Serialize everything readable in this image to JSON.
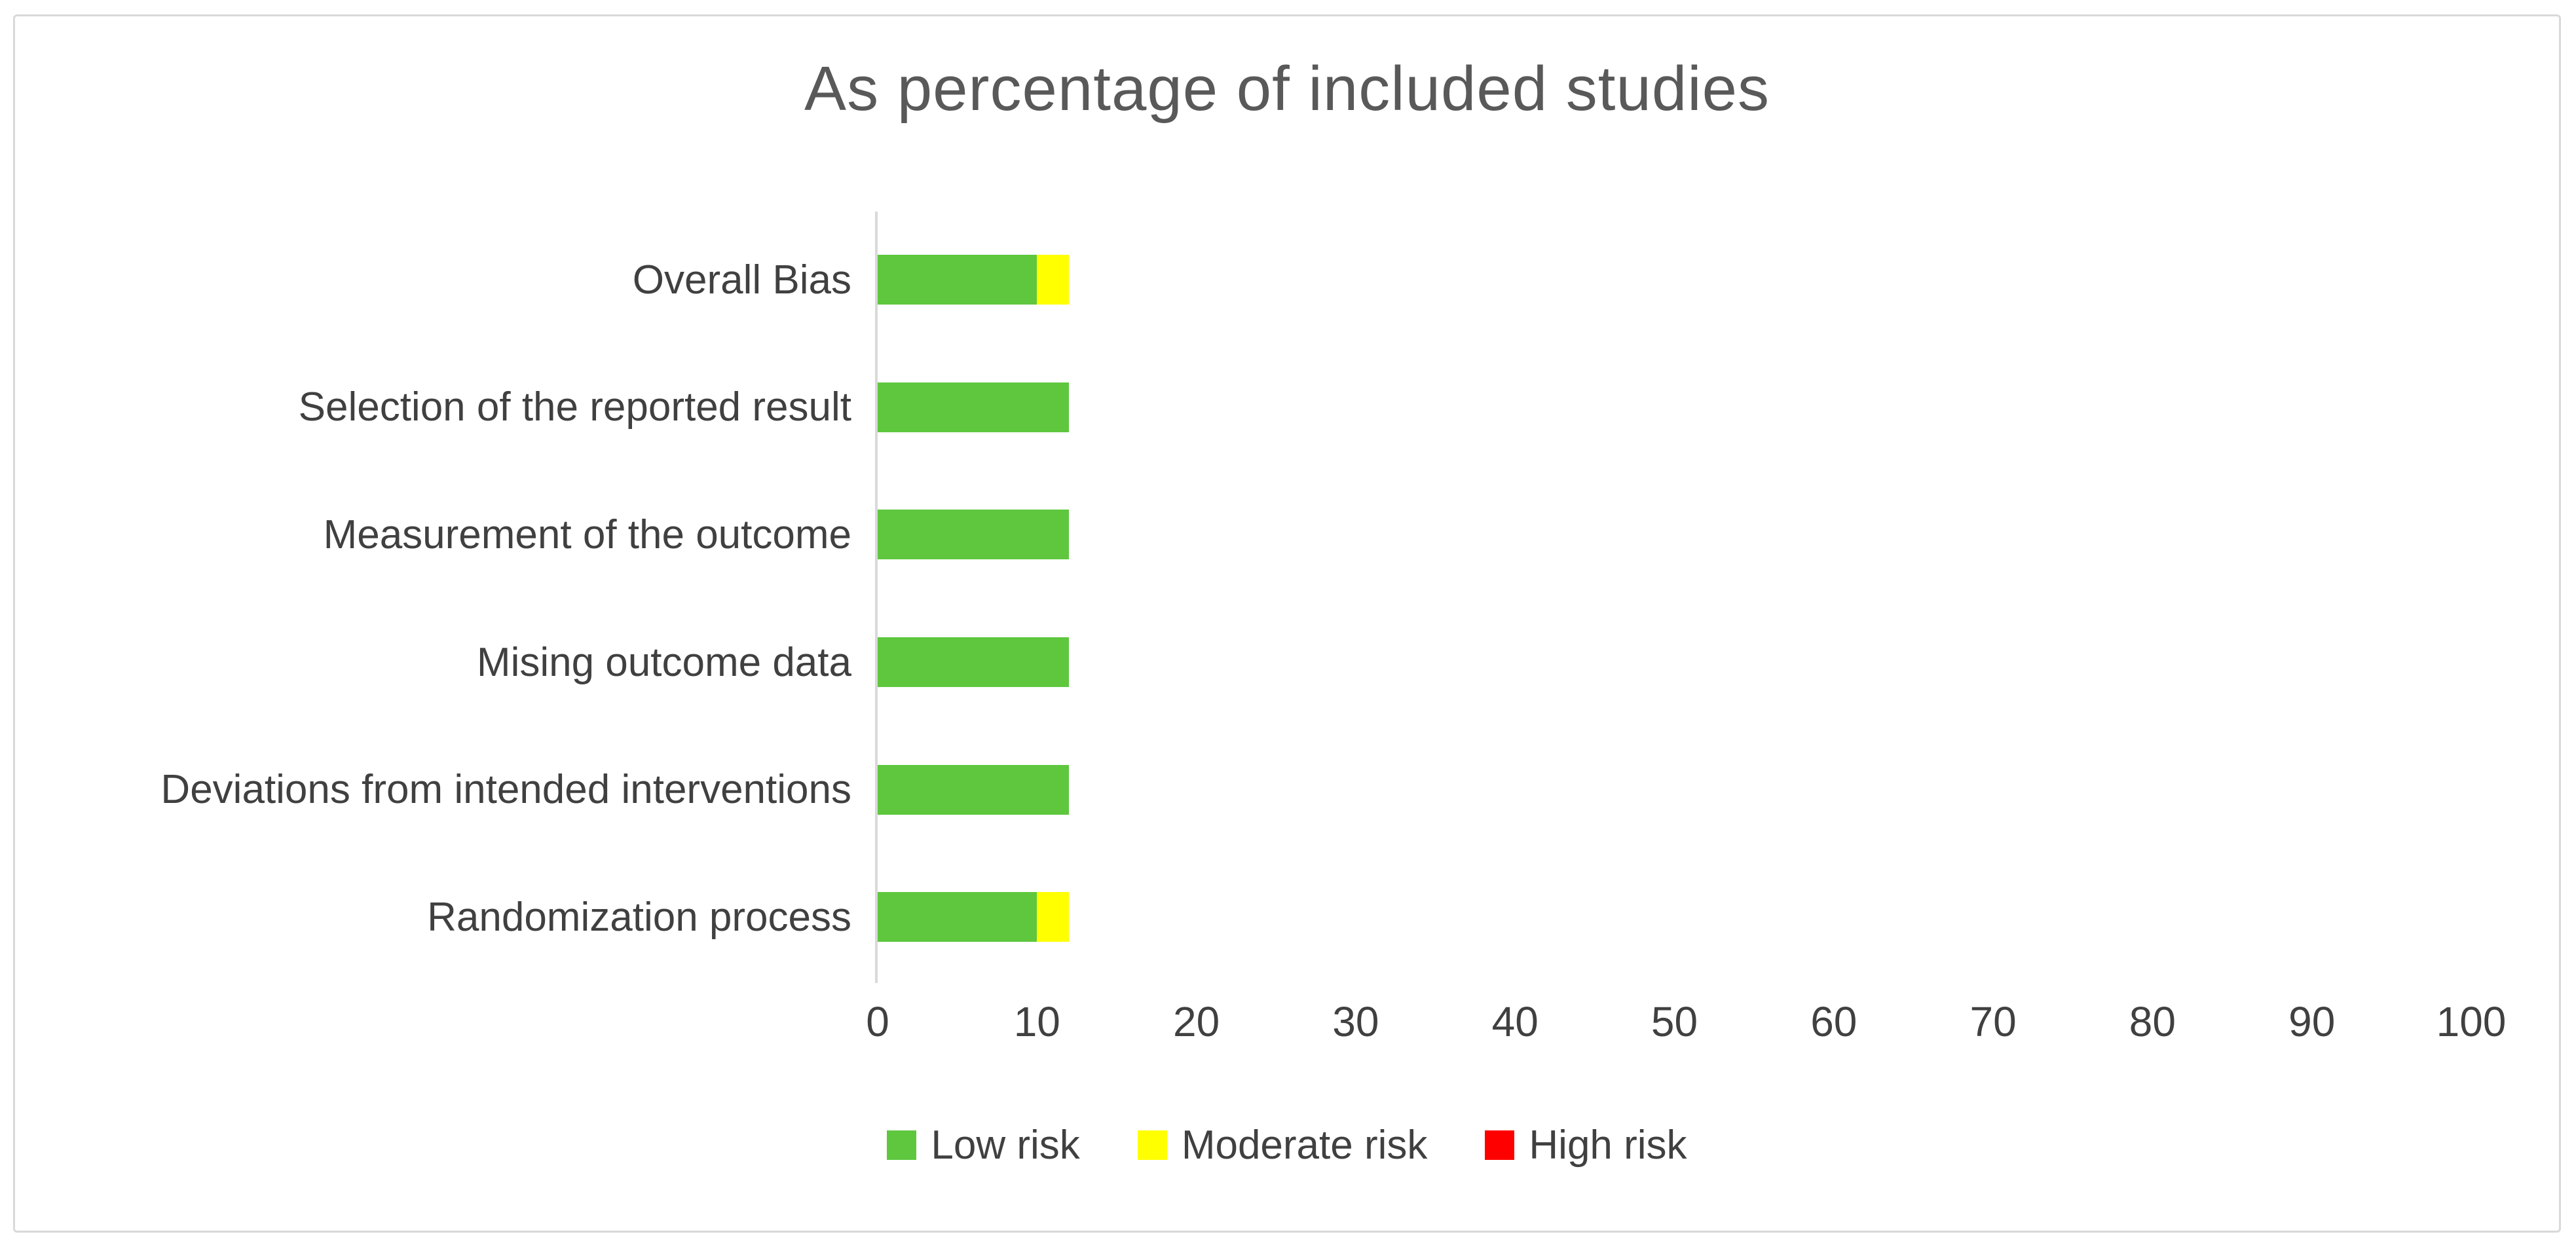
{
  "figure": {
    "background_color": "#FFFFFF",
    "border_color": "#D9D9D9",
    "title_color": "#595959",
    "text_color": "#404040",
    "axis_line_color": "#D9D9D9"
  },
  "chart_data": {
    "type": "bar",
    "orientation": "horizontal",
    "stacked": true,
    "title": "As percentage of included studies",
    "categories": [
      "Overall Bias",
      "Selection of the reported result",
      "Measurement of the outcome",
      "Mising outcome data",
      "Deviations from intended interventions",
      "Randomization process"
    ],
    "series": [
      {
        "name": "Low risk",
        "color": "#5EC73E",
        "values": [
          10,
          12,
          12,
          12,
          12,
          10
        ]
      },
      {
        "name": "Moderate risk",
        "color": "#FFFF00",
        "values": [
          2,
          0,
          0,
          0,
          0,
          2
        ]
      },
      {
        "name": "High risk",
        "color": "#FF0000",
        "values": [
          0,
          0,
          0,
          0,
          0,
          0
        ]
      }
    ],
    "xlabel": "",
    "ylabel": "",
    "xlim": [
      0,
      100
    ],
    "xticks": [
      0,
      10,
      20,
      30,
      40,
      50,
      60,
      70,
      80,
      90,
      100
    ],
    "grid": false,
    "legend_position": "bottom"
  }
}
